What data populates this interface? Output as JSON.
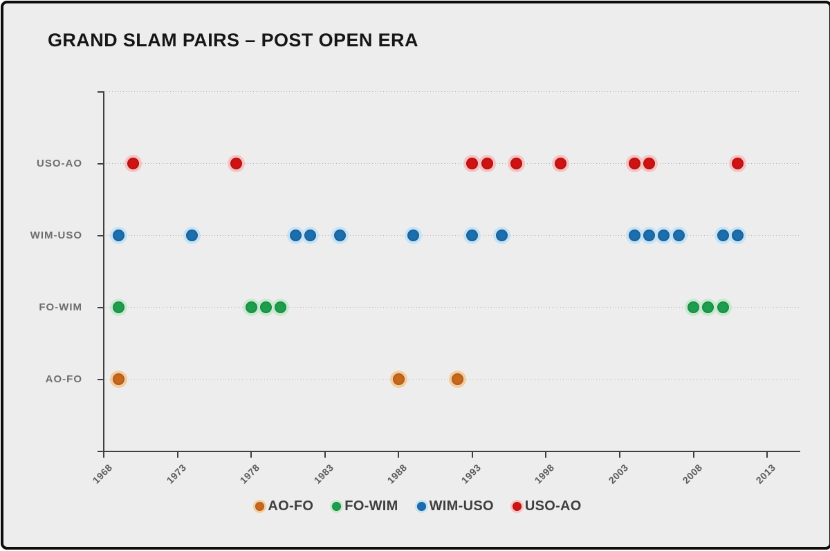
{
  "title": "GRAND SLAM PAIRS – POST OPEN ERA",
  "chart_data": {
    "type": "scatter",
    "title": "GRAND SLAM PAIRS – POST OPEN ERA",
    "xlabel": "",
    "ylabel": "",
    "x_axis": {
      "min": 1968,
      "max": 2015.2,
      "ticks": [
        1968,
        1973,
        1978,
        1983,
        1988,
        1993,
        1998,
        2003,
        2008,
        2013
      ],
      "tick_label_rotation_deg": 45
    },
    "y_axis": {
      "min": 0,
      "max": 5,
      "categories_bottom_to_top": [
        "AO-FO",
        "FO-WIM",
        "WIM-USO",
        "USO-AO"
      ],
      "gridlines": "dotted-horizontal"
    },
    "legend": {
      "position": "bottom-center",
      "entries": [
        "AO-FO",
        "FO-WIM",
        "WIM-USO",
        "USO-AO"
      ]
    },
    "series": [
      {
        "name": "AO-FO",
        "row": 1,
        "color": "#C8681E",
        "halo": "#F4CD9E",
        "years": [
          1969,
          1988,
          1992
        ]
      },
      {
        "name": "FO-WIM",
        "row": 2,
        "color": "#1E9E4C",
        "halo": "#C6EAD0",
        "years": [
          1969,
          1978,
          1979,
          1980,
          2008,
          2009,
          2010
        ]
      },
      {
        "name": "WIM-USO",
        "row": 3,
        "color": "#1D6EAD",
        "halo": "#C5E3F6",
        "years": [
          1969,
          1974,
          1981,
          1982,
          1984,
          1989,
          1993,
          1995,
          2004,
          2005,
          2006,
          2007,
          2010,
          2011
        ]
      },
      {
        "name": "USO-AO",
        "row": 4,
        "color": "#CF1313",
        "halo": "#F7C2C2",
        "years": [
          1970,
          1977,
          1993,
          1994,
          1996,
          1999,
          2004,
          2005,
          2011
        ]
      }
    ],
    "colors": {
      "background": "#EDEDED",
      "axis": "#3F3F3F",
      "gridline": "#B3B3B3",
      "frame_border": "#0E0E0E",
      "title_text": "#161616",
      "axis_label_text": "#5A5A5A"
    }
  }
}
